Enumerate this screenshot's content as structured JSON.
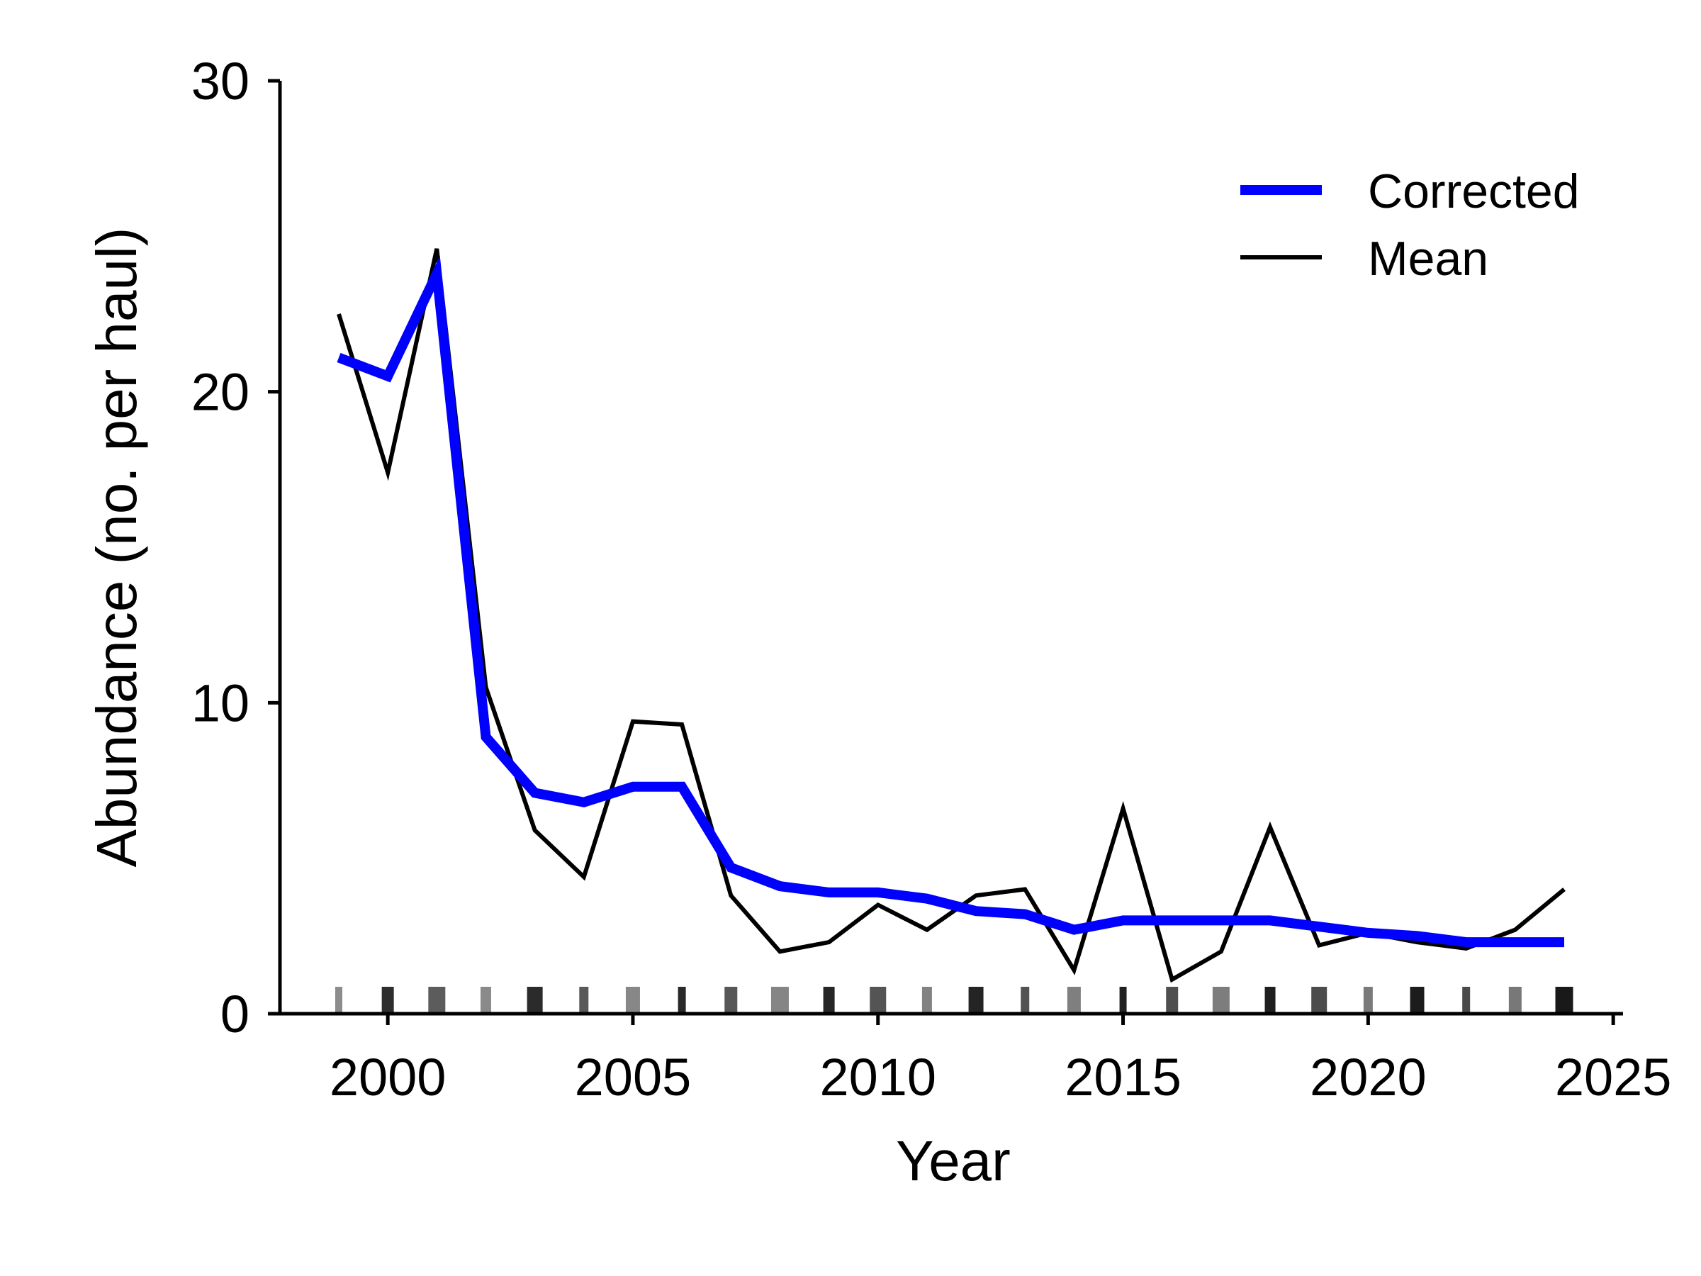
{
  "chart_data": {
    "type": "line",
    "title": "",
    "xlabel": "Year",
    "ylabel": "Abundance (no. per haul)",
    "xlim": [
      1997.8,
      2025.2
    ],
    "ylim": [
      0,
      30
    ],
    "xticks": [
      "2000",
      "2005",
      "2010",
      "2015",
      "2020",
      "2025"
    ],
    "yticks": [
      "0",
      "10",
      "20",
      "30"
    ],
    "grid": false,
    "legend_position": "top-right",
    "x": [
      1999,
      2000,
      2001,
      2002,
      2003,
      2004,
      2005,
      2006,
      2007,
      2008,
      2009,
      2010,
      2011,
      2012,
      2013,
      2014,
      2015,
      2016,
      2017,
      2018,
      2019,
      2020,
      2021,
      2022,
      2023,
      2024
    ],
    "series": [
      {
        "name": "Corrected",
        "color": "#0000ff",
        "values": [
          21.1,
          20.5,
          23.8,
          8.9,
          7.1,
          6.8,
          7.3,
          7.3,
          4.7,
          4.1,
          3.9,
          3.9,
          3.7,
          3.3,
          3.2,
          2.7,
          3.0,
          3.0,
          3.0,
          3.0,
          2.8,
          2.6,
          2.5,
          2.3,
          2.3,
          2.3
        ]
      },
      {
        "name": "Mean",
        "color": "#000000",
        "values": [
          22.5,
          17.4,
          24.6,
          10.5,
          5.9,
          4.4,
          9.4,
          9.3,
          3.8,
          2.0,
          2.3,
          3.5,
          2.7,
          3.8,
          4.0,
          1.4,
          6.6,
          1.1,
          2.0,
          6.0,
          2.2,
          2.6,
          2.3,
          2.1,
          2.7,
          4.0
        ]
      }
    ],
    "rug_years": [
      1999,
      2000,
      2001,
      2002,
      2003,
      2004,
      2005,
      2006,
      2007,
      2008,
      2009,
      2010,
      2011,
      2012,
      2013,
      2014,
      2015,
      2016,
      2017,
      2018,
      2019,
      2020,
      2021,
      2022,
      2023,
      2024
    ]
  }
}
